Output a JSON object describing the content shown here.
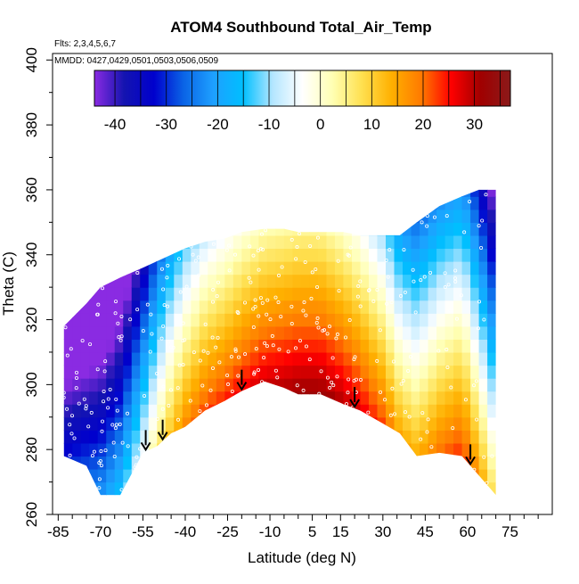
{
  "chart_data": {
    "type": "heatmap",
    "title": "ATOM4 Southbound Total_Air_Temp",
    "annotations": [
      "Flts: 2,3,4,5,6,7",
      "MMDD: 0427,0429,0501,0503,0506,0509"
    ],
    "xlabel": "Latitude (deg N)",
    "ylabel": "Theta (C)",
    "xlim": [
      -87,
      90
    ],
    "ylim": [
      260,
      402
    ],
    "x_ticks": [
      -85,
      -70,
      -55,
      -40,
      -25,
      -10,
      5,
      15,
      30,
      45,
      60,
      75
    ],
    "y_ticks": [
      260,
      280,
      300,
      320,
      340,
      360,
      380,
      400
    ],
    "colorbar": {
      "ticks": [
        -40,
        -30,
        -20,
        -10,
        0,
        10,
        20,
        30
      ],
      "range": [
        -44,
        37
      ],
      "colors": [
        "#8a2be2",
        "#1414b0",
        "#0000cd",
        "#0a64e6",
        "#1ea0ff",
        "#00bfff",
        "#b4e6ff",
        "#ffffff",
        "#ffffb4",
        "#ffe050",
        "#ffb000",
        "#ff7a00",
        "#ff0000",
        "#a00000",
        "#8b1a1a"
      ]
    },
    "arrows_latitude": [
      -54,
      -48,
      -20,
      20,
      61
    ],
    "series": [
      {
        "x": [
          -83,
          -75,
          -70,
          -63,
          -55,
          -50,
          -45,
          -40,
          -33,
          -26,
          -20,
          -12,
          -5,
          0,
          8,
          16,
          22,
          30,
          36,
          42,
          50,
          58,
          64,
          70
        ],
        "bottom": [
          278,
          275,
          266,
          266,
          279,
          281,
          285,
          287,
          292,
          295,
          298,
          301,
          299,
          297,
          297,
          294,
          292,
          288,
          285,
          278,
          279,
          278,
          272,
          266
        ],
        "top": [
          318,
          325,
          330,
          333,
          336,
          338,
          340,
          342,
          344,
          345,
          347,
          348,
          348,
          347,
          347,
          347,
          346,
          346,
          346,
          350,
          355,
          358,
          360,
          360
        ],
        "temperature": [
          -32,
          -28,
          -22,
          -15,
          -5,
          5,
          12,
          18,
          22,
          24,
          26,
          28,
          30,
          32,
          32,
          30,
          27,
          22,
          14,
          14,
          20,
          24,
          16,
          5
        ]
      }
    ]
  }
}
